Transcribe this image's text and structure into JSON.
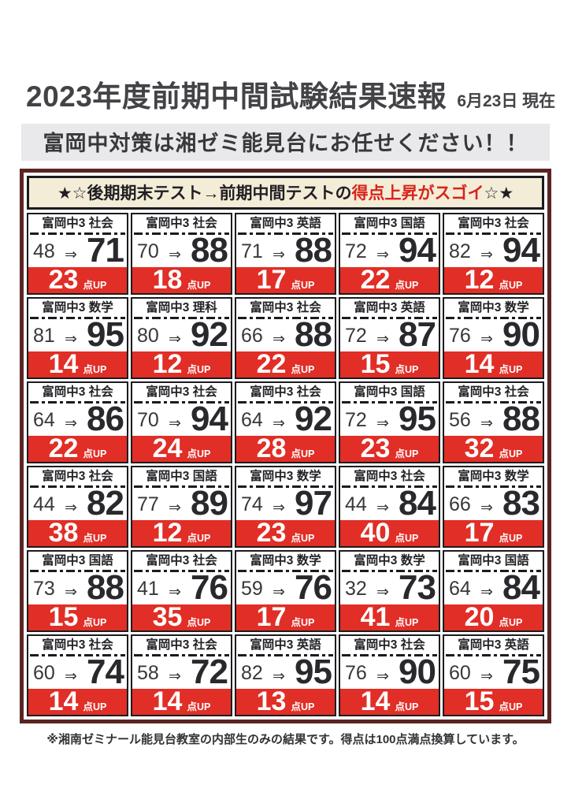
{
  "page": {
    "title": "2023年度前期中間試験結果速報",
    "date_note": "6月23日 現在",
    "banner": "富岡中対策は湘ゼミ能見台にお任せください！！",
    "board_header": {
      "prefix": "★☆後期期末テスト→前期中間テストの",
      "highlight": "得点上昇がスゴイ",
      "suffix": "☆★"
    },
    "arrow": "⇒",
    "up_label": "点UP",
    "footnote": "※湘南ゼミナール能見台教室の内部生のみの結果です。得点は100点満点換算しています。"
  },
  "colors": {
    "red_bar": "#e12e26",
    "highlight_red": "#d8241b",
    "board_border_maroon": "#5a2422",
    "header_cream": "#f3ecd7",
    "banner_gray": "#e9e9ec"
  },
  "chart_data": {
    "type": "table",
    "title": "2023年度前期中間試験結果速報",
    "columns": [
      "label",
      "before",
      "after",
      "up"
    ],
    "rows_note": "6 rows x 5 columns of score-up cells, reading order left-to-right"
  },
  "cells": [
    {
      "label": "富岡中3 社会",
      "before": "48",
      "after": "71",
      "up": "23"
    },
    {
      "label": "富岡中3 社会",
      "before": "70",
      "after": "88",
      "up": "18"
    },
    {
      "label": "富岡中3 英語",
      "before": "71",
      "after": "88",
      "up": "17"
    },
    {
      "label": "富岡中3 国語",
      "before": "72",
      "after": "94",
      "up": "22"
    },
    {
      "label": "富岡中3 社会",
      "before": "82",
      "after": "94",
      "up": "12"
    },
    {
      "label": "富岡中3 数学",
      "before": "81",
      "after": "95",
      "up": "14"
    },
    {
      "label": "富岡中3 理科",
      "before": "80",
      "after": "92",
      "up": "12"
    },
    {
      "label": "富岡中3 社会",
      "before": "66",
      "after": "88",
      "up": "22"
    },
    {
      "label": "富岡中3 英語",
      "before": "72",
      "after": "87",
      "up": "15"
    },
    {
      "label": "富岡中3 数学",
      "before": "76",
      "after": "90",
      "up": "14"
    },
    {
      "label": "富岡中3 社会",
      "before": "64",
      "after": "86",
      "up": "22"
    },
    {
      "label": "富岡中3 社会",
      "before": "70",
      "after": "94",
      "up": "24"
    },
    {
      "label": "富岡中3 社会",
      "before": "64",
      "after": "92",
      "up": "28"
    },
    {
      "label": "富岡中3 国語",
      "before": "72",
      "after": "95",
      "up": "23"
    },
    {
      "label": "富岡中3 社会",
      "before": "56",
      "after": "88",
      "up": "32"
    },
    {
      "label": "富岡中3 社会",
      "before": "44",
      "after": "82",
      "up": "38"
    },
    {
      "label": "富岡中3 国語",
      "before": "77",
      "after": "89",
      "up": "12"
    },
    {
      "label": "富岡中3 数学",
      "before": "74",
      "after": "97",
      "up": "23"
    },
    {
      "label": "富岡中3 社会",
      "before": "44",
      "after": "84",
      "up": "40"
    },
    {
      "label": "富岡中3 数学",
      "before": "66",
      "after": "83",
      "up": "17"
    },
    {
      "label": "富岡中3 国語",
      "before": "73",
      "after": "88",
      "up": "15"
    },
    {
      "label": "富岡中3 社会",
      "before": "41",
      "after": "76",
      "up": "35"
    },
    {
      "label": "富岡中3 数学",
      "before": "59",
      "after": "76",
      "up": "17"
    },
    {
      "label": "富岡中3 数学",
      "before": "32",
      "after": "73",
      "up": "41"
    },
    {
      "label": "富岡中3 国語",
      "before": "64",
      "after": "84",
      "up": "20"
    },
    {
      "label": "富岡中3 社会",
      "before": "60",
      "after": "74",
      "up": "14"
    },
    {
      "label": "富岡中3 社会",
      "before": "58",
      "after": "72",
      "up": "14"
    },
    {
      "label": "富岡中3 英語",
      "before": "82",
      "after": "95",
      "up": "13"
    },
    {
      "label": "富岡中3 社会",
      "before": "76",
      "after": "90",
      "up": "14"
    },
    {
      "label": "富岡中3 英語",
      "before": "60",
      "after": "75",
      "up": "15"
    }
  ]
}
